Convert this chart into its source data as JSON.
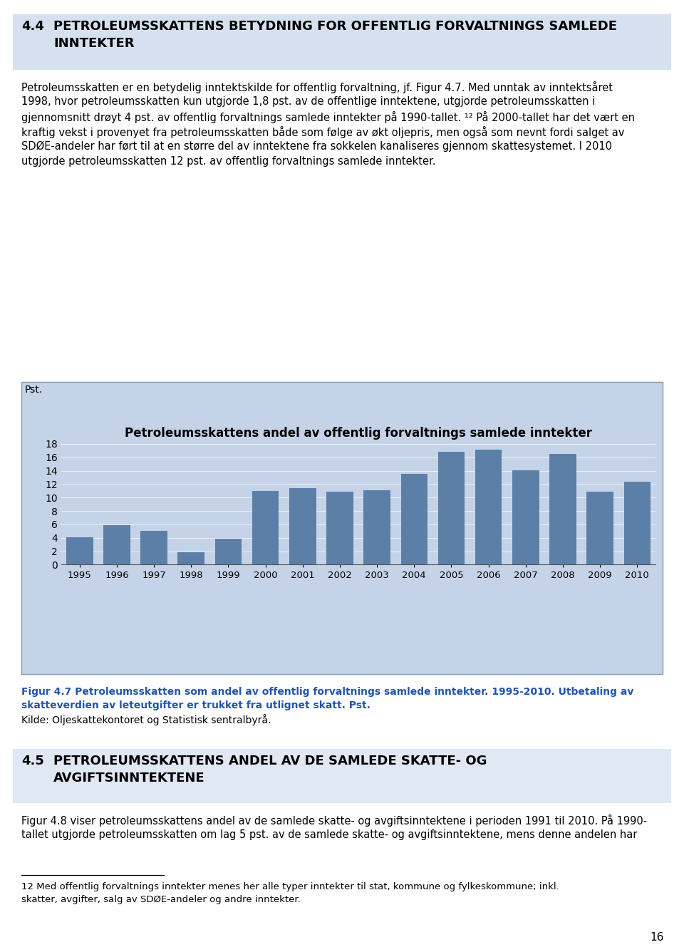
{
  "section_44_line1": "4.4",
  "section_44_line2": "PETROLEUMSSKATTENS BETYDNING FOR OFFENTLIG FORVALTNINGS SAMLEDE",
  "section_44_line3": "INNTEKTER",
  "body_44_lines": [
    "Petroleumsskatten er en betydelig inntektskilde for offentlig forvaltning, jf. Figur 4.7. Med unntak av inntektsåret",
    "1998, hvor petroleumsskatten kun utgjorde 1,8 pst. av de offentlige inntektene, utgjorde petroleumsskatten i",
    "gjennomsnitt drøyt 4 pst. av offentlig forvaltnings samlede inntekter på 1990-tallet. ¹² På 2000-tallet har det vært en",
    "kraftig vekst i provenyet fra petroleumsskatten både som følge av økt oljepris, men også som nevnt fordi salget av",
    "SDØE-andeler har ført til at en større del av inntektene fra sokkelen kanaliseres gjennom skattesystemet. I 2010",
    "utgjorde petroleumsskatten 12 pst. av offentlig forvaltnings samlede inntekter."
  ],
  "chart_title": "Petroleumsskattens andel av offentlig forvaltnings samlede inntekter",
  "chart_ylabel": "Pst.",
  "chart_years": [
    1995,
    1996,
    1997,
    1998,
    1999,
    2000,
    2001,
    2002,
    2003,
    2004,
    2005,
    2006,
    2007,
    2008,
    2009,
    2010
  ],
  "chart_values": [
    4.1,
    5.9,
    5.0,
    1.8,
    3.9,
    11.0,
    11.4,
    10.9,
    11.1,
    13.5,
    16.8,
    17.1,
    14.1,
    16.5,
    10.9,
    12.4
  ],
  "chart_bar_color": "#5B7FA6",
  "chart_bg_color": "#C5D3E8",
  "chart_ylim": [
    0,
    18
  ],
  "chart_yticks": [
    0,
    2,
    4,
    6,
    8,
    10,
    12,
    14,
    16,
    18
  ],
  "chart_border_color": "#8899AA",
  "caption_bold_lines": [
    "Figur 4.7 Petroleumsskatten som andel av offentlig forvaltnings samlede inntekter. 1995-2010. Utbetaling av",
    "skatteverdien av leteutgifter er trukket fra utlignet skatt. Pst."
  ],
  "caption_normal": "Kilde: Oljeskattekontoret og Statistisk sentralbyrå.",
  "section_45_line1": "4.5",
  "section_45_line2": "PETROLEUMSSKATTENS ANDEL AV DE SAMLEDE SKATTE- OG",
  "section_45_line3": "AVGIFTSINNTEKTENE",
  "body_45_lines": [
    "Figur 4.8 viser petroleumsskattens andel av de samlede skatte- og avgiftsinntektene i perioden 1991 til 2010. På 1990-",
    "tallet utgjorde petroleumsskatten om lag 5 pst. av de samlede skatte- og avgiftsinntektene, mens denne andelen har"
  ],
  "footnote_lines": [
    "12 Med offentlig forvaltnings inntekter menes her alle typer inntekter til stat, kommune og fylkeskommune; inkl.",
    "skatter, avgifter, salg av SDØE-andeler og andre inntekter."
  ],
  "page_number": "16",
  "header_bg_color": "#D6E0EF",
  "section_45_bg_color": "#E0E8F4",
  "caption_color": "#2255AA"
}
